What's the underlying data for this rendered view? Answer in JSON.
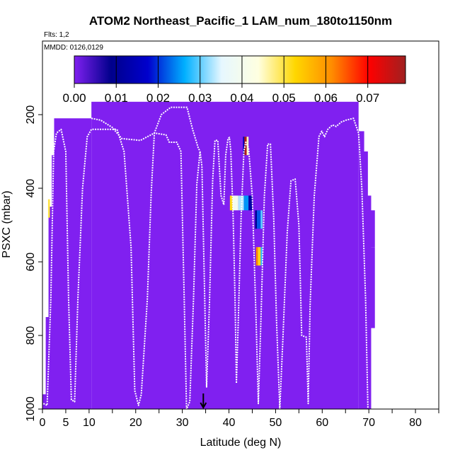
{
  "chart_data": {
    "type": "heatmap",
    "title": "ATOM2 Northeast_Pacific_1 LAM_num_180to1150nm",
    "flights_note": "Flts: 1,2",
    "date_note": "MMDD: 0126,0129",
    "xlabel": "Latitude (deg N)",
    "ylabel": "PSXC (mbar)",
    "xlim": [
      0,
      85
    ],
    "ylim": [
      1000,
      0
    ],
    "x_ticks": [
      0,
      5,
      10,
      20,
      30,
      40,
      50,
      60,
      70,
      80
    ],
    "x_tick_labels": [
      "0",
      "5",
      "10",
      "20",
      "30",
      "40",
      "50",
      "60",
      "70",
      "80"
    ],
    "x_minor_ticks": [
      15,
      25,
      35,
      45,
      55,
      65,
      75,
      85
    ],
    "y_ticks": [
      200,
      400,
      600,
      800,
      1000
    ],
    "y_tick_labels": [
      "200",
      "400",
      "600",
      "800",
      "1000"
    ],
    "marker_latitude": 34.5,
    "colorbar": {
      "ticks": [
        0.0,
        0.01,
        0.02,
        0.03,
        0.04,
        0.05,
        0.06,
        0.07
      ],
      "tick_labels": [
        "0.00",
        "0.01",
        "0.02",
        "0.03",
        "0.04",
        "0.05",
        "0.06",
        "0.07"
      ],
      "max": 0.079,
      "colors": [
        "#8020f0",
        "#00008b",
        "#0000cd",
        "#00b0ff",
        "#e6f7ff",
        "#ffffe0",
        "#ffd700",
        "#ff8c00",
        "#ff0000",
        "#a02020"
      ]
    },
    "background_value_color": "#8020f0",
    "coverage_region": [
      {
        "lat": [
          0,
          1.5
        ],
        "p": [
          960,
          1000
        ]
      },
      {
        "lat": [
          0.7,
          2.0
        ],
        "p": [
          750,
          970
        ]
      },
      {
        "lat": [
          1.3,
          2.6
        ],
        "p": [
          450,
          1000
        ]
      },
      {
        "lat": [
          2.0,
          3.2
        ],
        "p": [
          310,
          1000
        ]
      },
      {
        "lat": [
          2.5,
          10.5
        ],
        "p": [
          210,
          1000
        ]
      },
      {
        "lat": [
          10.5,
          67.8
        ],
        "p": [
          165,
          1000
        ]
      },
      {
        "lat": [
          67.8,
          69.0
        ],
        "p": [
          245,
          1000
        ]
      },
      {
        "lat": [
          68.5,
          69.8
        ],
        "p": [
          300,
          1000
        ]
      },
      {
        "lat": [
          69.2,
          70.5
        ],
        "p": [
          420,
          1000
        ]
      },
      {
        "lat": [
          70.2,
          71.3
        ],
        "p": [
          460,
          560
        ]
      },
      {
        "lat": [
          70.2,
          71.3
        ],
        "p": [
          560,
          780
        ]
      }
    ],
    "high_value_cells": [
      {
        "lat": [
          43.2,
          43.8
        ],
        "p": [
          260,
          310
        ],
        "value": 0.078
      },
      {
        "lat": [
          43.8,
          44.2
        ],
        "p": [
          260,
          310
        ],
        "value": 0.045
      },
      {
        "lat": [
          43.0,
          43.3
        ],
        "p": [
          260,
          310
        ],
        "value": 0.015
      },
      {
        "lat": [
          40.2,
          40.8
        ],
        "p": [
          420,
          460
        ],
        "value": 0.052
      },
      {
        "lat": [
          40.8,
          42.0
        ],
        "p": [
          420,
          460
        ],
        "value": 0.04
      },
      {
        "lat": [
          42.0,
          43.2
        ],
        "p": [
          420,
          460
        ],
        "value": 0.033
      },
      {
        "lat": [
          43.2,
          44.2
        ],
        "p": [
          420,
          460
        ],
        "value": 0.025
      },
      {
        "lat": [
          44.2,
          45.0
        ],
        "p": [
          420,
          460
        ],
        "value": 0.012
      },
      {
        "lat": [
          45.6,
          46.0
        ],
        "p": [
          460,
          510
        ],
        "value": 0.01
      },
      {
        "lat": [
          46.0,
          46.8
        ],
        "p": [
          460,
          510
        ],
        "value": 0.022
      },
      {
        "lat": [
          46.8,
          47.2
        ],
        "p": [
          460,
          510
        ],
        "value": 0.03
      },
      {
        "lat": [
          45.8,
          46.2
        ],
        "p": [
          560,
          610
        ],
        "value": 0.062
      },
      {
        "lat": [
          46.2,
          46.8
        ],
        "p": [
          560,
          610
        ],
        "value": 0.052
      },
      {
        "lat": [
          46.8,
          47.2
        ],
        "p": [
          560,
          610
        ],
        "value": 0.028
      },
      {
        "lat": [
          1.2,
          1.6
        ],
        "p": [
          430,
          480
        ],
        "value": 0.05
      }
    ],
    "flight_track": [
      [
        0.2,
        985
      ],
      [
        1.0,
        990
      ],
      [
        1.8,
        700
      ],
      [
        2.4,
        300
      ],
      [
        3.0,
        250
      ],
      [
        4.0,
        240
      ],
      [
        5.0,
        300
      ],
      [
        5.6,
        700
      ],
      [
        6.2,
        975
      ],
      [
        6.9,
        980
      ],
      [
        7.6,
        700
      ],
      [
        8.6,
        400
      ],
      [
        9.6,
        260
      ],
      [
        10.5,
        240
      ],
      [
        16.0,
        240
      ],
      [
        17.5,
        300
      ],
      [
        19.0,
        560
      ],
      [
        19.8,
        950
      ],
      [
        20.6,
        990
      ],
      [
        21.2,
        960
      ],
      [
        22.5,
        700
      ],
      [
        23.3,
        420
      ],
      [
        24.0,
        250
      ],
      [
        26.5,
        255
      ],
      [
        27.2,
        275
      ],
      [
        28.8,
        275
      ],
      [
        29.7,
        300
      ],
      [
        30.4,
        700
      ],
      [
        30.9,
        1000
      ],
      [
        31.6,
        980
      ],
      [
        32.4,
        700
      ],
      [
        33.1,
        390
      ],
      [
        33.8,
        300
      ],
      [
        34.2,
        340
      ],
      [
        34.8,
        700
      ],
      [
        35.2,
        940
      ],
      [
        35.8,
        720
      ],
      [
        36.5,
        380
      ],
      [
        37.0,
        270
      ],
      [
        37.6,
        270
      ],
      [
        38.3,
        420
      ],
      [
        38.9,
        445
      ],
      [
        39.3,
        310
      ],
      [
        39.8,
        265
      ],
      [
        40.1,
        262
      ],
      [
        40.4,
        300
      ],
      [
        40.9,
        480
      ],
      [
        41.3,
        700
      ],
      [
        41.6,
        930
      ],
      [
        42.0,
        760
      ],
      [
        42.6,
        480
      ],
      [
        43.2,
        300
      ],
      [
        43.6,
        275
      ],
      [
        44.2,
        290
      ],
      [
        45.0,
        420
      ],
      [
        45.8,
        750
      ],
      [
        46.3,
        985
      ],
      [
        46.9,
        740
      ],
      [
        47.6,
        420
      ],
      [
        48.3,
        280
      ],
      [
        48.9,
        280
      ],
      [
        49.6,
        480
      ],
      [
        50.2,
        760
      ],
      [
        50.9,
        1000
      ],
      [
        51.6,
        800
      ],
      [
        52.5,
        520
      ],
      [
        53.3,
        380
      ],
      [
        54.2,
        375
      ],
      [
        55.0,
        500
      ],
      [
        55.6,
        800
      ],
      [
        56.6,
        805
      ],
      [
        57.0,
        985
      ],
      [
        57.4,
        720
      ],
      [
        58.3,
        420
      ],
      [
        59.3,
        260
      ],
      [
        59.9,
        245
      ],
      [
        60.5,
        260
      ],
      [
        61.2,
        240
      ],
      [
        62.2,
        228
      ],
      [
        63.0,
        232
      ],
      [
        64.1,
        220
      ],
      [
        65.1,
        215
      ],
      [
        66.7,
        210
      ],
      [
        67.8,
        250
      ],
      [
        68.5,
        400
      ],
      [
        69.3,
        700
      ],
      [
        69.8,
        1000
      ]
    ],
    "flight_track_upper": [
      [
        10.5,
        210
      ],
      [
        12.5,
        215
      ],
      [
        15.0,
        235
      ],
      [
        17.0,
        265
      ],
      [
        21.0,
        270
      ],
      [
        24.0,
        250
      ],
      [
        25.5,
        200
      ],
      [
        27.5,
        180
      ],
      [
        29.5,
        180
      ],
      [
        31.0,
        180
      ],
      [
        32.2,
        240
      ],
      [
        33.4,
        290
      ],
      [
        33.8,
        300
      ]
    ]
  }
}
